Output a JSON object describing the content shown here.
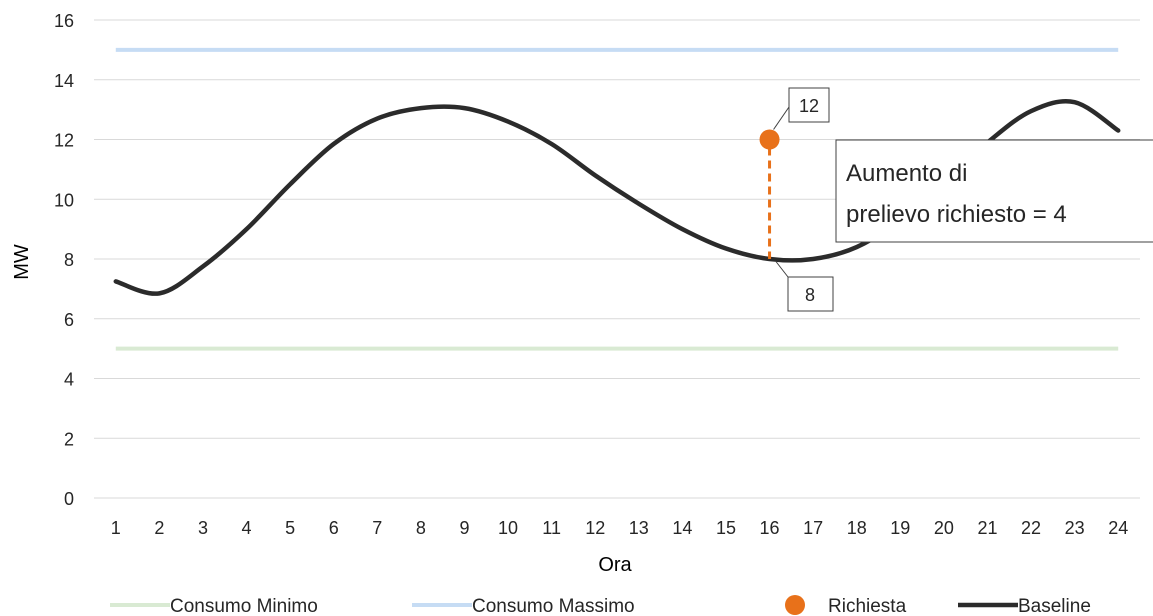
{
  "chart_data": {
    "type": "line",
    "title": "",
    "xlabel": "Ora",
    "ylabel": "MW",
    "categories": [
      "1",
      "2",
      "3",
      "4",
      "5",
      "6",
      "7",
      "8",
      "9",
      "10",
      "11",
      "12",
      "13",
      "14",
      "15",
      "16",
      "17",
      "18",
      "19",
      "20",
      "21",
      "22",
      "23",
      "24"
    ],
    "ylim": [
      0,
      16
    ],
    "yticks": [
      0,
      2,
      4,
      6,
      8,
      10,
      12,
      14,
      16
    ],
    "grid": true,
    "legend_position": "bottom",
    "series": [
      {
        "name": "Consumo Minimo",
        "kind": "line",
        "color": "#d9ead3",
        "values": [
          5,
          5,
          5,
          5,
          5,
          5,
          5,
          5,
          5,
          5,
          5,
          5,
          5,
          5,
          5,
          5,
          5,
          5,
          5,
          5,
          5,
          5,
          5,
          5
        ]
      },
      {
        "name": "Consumo Massimo",
        "kind": "line",
        "color": "#c6dcf4",
        "values": [
          15,
          15,
          15,
          15,
          15,
          15,
          15,
          15,
          15,
          15,
          15,
          15,
          15,
          15,
          15,
          15,
          15,
          15,
          15,
          15,
          15,
          15,
          15,
          15
        ]
      },
      {
        "name": "Richiesta",
        "kind": "marker",
        "color": "#e8711a",
        "points": [
          {
            "x": "16",
            "y": 12
          }
        ]
      },
      {
        "name": "Baseline",
        "kind": "line",
        "color": "#2b2b2b",
        "values": [
          7.25,
          6.85,
          7.75,
          9.0,
          10.5,
          11.85,
          12.7,
          13.05,
          13.05,
          12.6,
          11.85,
          10.8,
          9.85,
          9.0,
          8.35,
          8.0,
          8.0,
          8.4,
          9.3,
          10.6,
          11.9,
          12.95,
          13.25,
          12.3
        ]
      }
    ],
    "annotations": {
      "point_label": "12",
      "baseline_label": "8",
      "increase_text_line1": "Aumento di",
      "increase_text_line2": "prelievo richiesto = 4"
    }
  }
}
